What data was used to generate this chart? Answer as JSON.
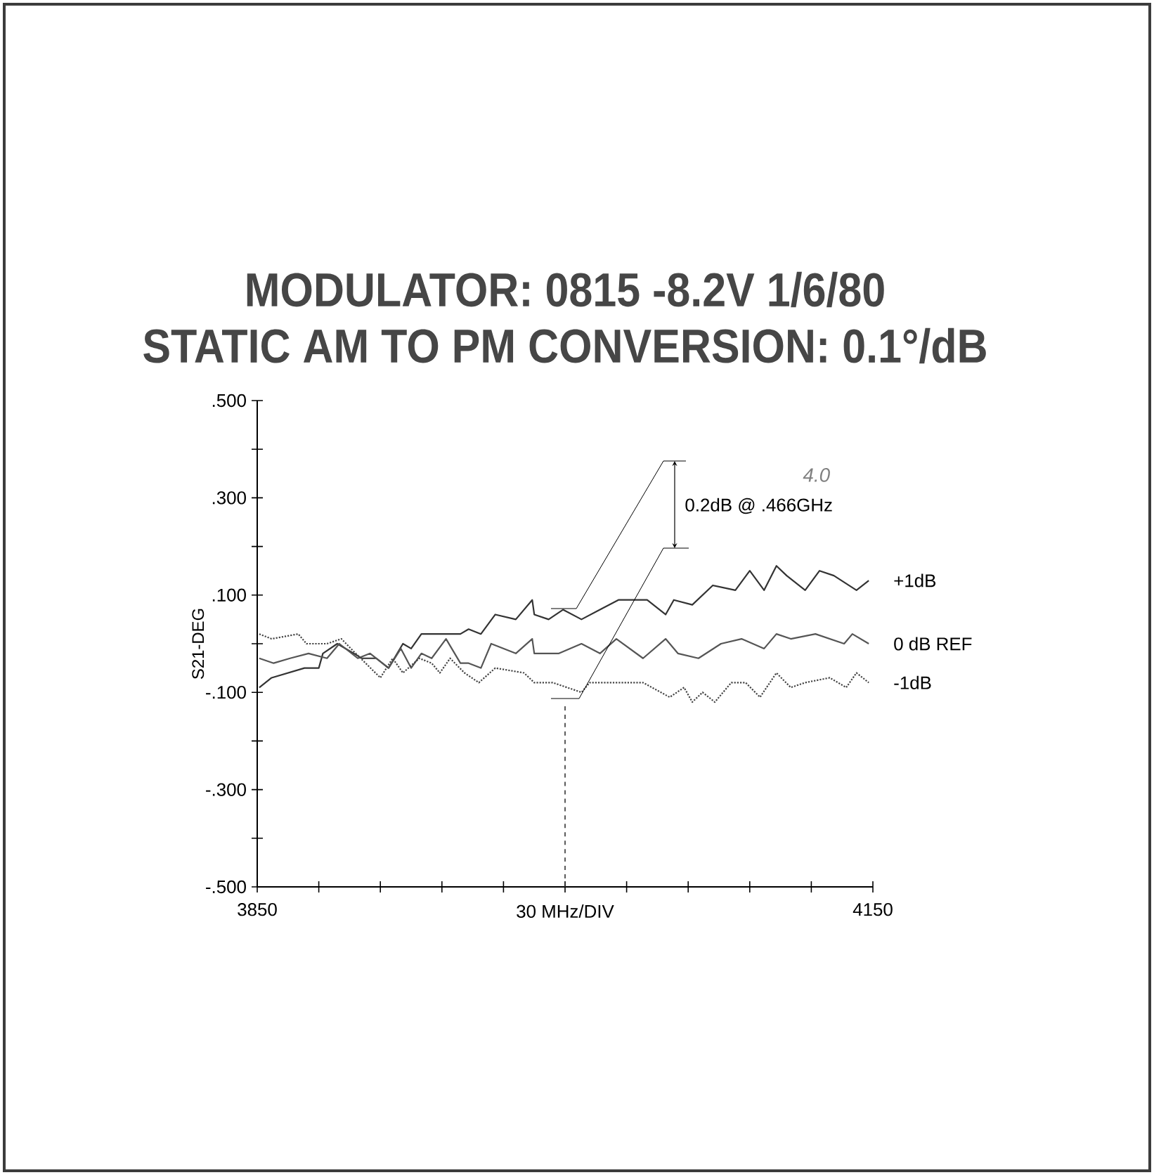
{
  "chart_data": {
    "type": "line",
    "title": "MODULATOR: 0815  -8.2V  1/6/80",
    "subtitle": "STATIC AM TO PM CONVERSION: 0.1°/dB",
    "ylabel": "S21-DEG",
    "xlabel": "30 MHz/DIV",
    "xlim": [
      3850,
      4150
    ],
    "ylim": [
      -0.5,
      0.5
    ],
    "xticks": [
      3850,
      {
        "value": 3880,
        "label": null
      },
      {
        "value": 3910,
        "label": null
      },
      {
        "value": 3940,
        "label": null
      },
      {
        "value": 3970,
        "label": null
      },
      {
        "value": 4000,
        "label": null
      },
      {
        "value": 4030,
        "label": null
      },
      {
        "value": 4060,
        "label": null
      },
      {
        "value": 4090,
        "label": null
      },
      {
        "value": 4120,
        "label": null
      },
      4150
    ],
    "yticks": [
      {
        "value": -0.5,
        "label": "-.500"
      },
      {
        "value": -0.4,
        "label": null
      },
      {
        "value": -0.3,
        "label": "-.300"
      },
      {
        "value": -0.2,
        "label": null
      },
      {
        "value": -0.1,
        "label": "-.100"
      },
      {
        "value": 0,
        "label": null
      },
      {
        "value": 0.1,
        "label": ".100"
      },
      {
        "value": 0.2,
        "label": null
      },
      {
        "value": 0.3,
        "label": ".300"
      },
      {
        "value": 0.4,
        "label": null
      },
      {
        "value": 0.5,
        "label": ".500"
      }
    ],
    "series": [
      {
        "name": "+1dB",
        "color": "#333333",
        "line_style": "solid",
        "x": [
          3851,
          3857,
          3873,
          3880,
          3882,
          3889,
          3901,
          3908,
          3914,
          3921,
          3925,
          3930,
          3949,
          3953,
          3959,
          3966,
          3976,
          3984,
          3985,
          3992,
          3999,
          4008,
          4017,
          4026,
          4033,
          4040,
          4049,
          4053,
          4062,
          4072,
          4083,
          4090,
          4097,
          4103,
          4108,
          4117,
          4124,
          4131,
          4142,
          4148
        ],
        "values": [
          -0.09,
          -0.07,
          -0.05,
          -0.05,
          -0.02,
          0.0,
          -0.03,
          -0.03,
          -0.05,
          0.0,
          -0.01,
          0.02,
          0.02,
          0.03,
          0.02,
          0.06,
          0.05,
          0.09,
          0.06,
          0.05,
          0.07,
          0.05,
          0.07,
          0.09,
          0.09,
          0.09,
          0.06,
          0.09,
          0.08,
          0.12,
          0.11,
          0.15,
          0.11,
          0.16,
          0.14,
          0.11,
          0.15,
          0.14,
          0.11,
          0.13
        ]
      },
      {
        "name": "0 dB REF",
        "color": "#555555",
        "line_style": "solid",
        "x": [
          3851,
          3858,
          3866,
          3875,
          3884,
          3890,
          3899,
          3905,
          3914,
          3920,
          3925,
          3930,
          3935,
          3942,
          3949,
          3953,
          3959,
          3964,
          3976,
          3984,
          3985,
          3997,
          4008,
          4017,
          4025,
          4038,
          4049,
          4055,
          4065,
          4076,
          4086,
          4097,
          4103,
          4110,
          4122,
          4136,
          4140,
          4148
        ],
        "values": [
          -0.03,
          -0.04,
          -0.03,
          -0.02,
          -0.03,
          0.0,
          -0.03,
          -0.02,
          -0.05,
          -0.01,
          -0.05,
          -0.02,
          -0.03,
          0.01,
          -0.04,
          -0.04,
          -0.05,
          0.0,
          -0.02,
          0.01,
          -0.02,
          -0.02,
          0.0,
          -0.02,
          0.01,
          -0.03,
          0.01,
          -0.02,
          -0.03,
          0.0,
          0.01,
          -0.01,
          0.02,
          0.01,
          0.02,
          0.0,
          0.02,
          0.0
        ]
      },
      {
        "name": "-1dB",
        "color": "#444444",
        "line_style": "dotted",
        "x": [
          3851,
          3857,
          3870,
          3874,
          3884,
          3891,
          3898,
          3910,
          3916,
          3921,
          3929,
          3935,
          3939,
          3944,
          3951,
          3958,
          3966,
          3980,
          3985,
          3994,
          4008,
          4012,
          4026,
          4038,
          4051,
          4058,
          4062,
          4067,
          4073,
          4081,
          4088,
          4095,
          4103,
          4110,
          4117,
          4129,
          4137,
          4142,
          4148
        ],
        "values": [
          0.02,
          0.01,
          0.02,
          0.0,
          0.0,
          0.01,
          -0.02,
          -0.07,
          -0.03,
          -0.06,
          -0.03,
          -0.04,
          -0.06,
          -0.03,
          -0.06,
          -0.08,
          -0.05,
          -0.06,
          -0.08,
          -0.08,
          -0.1,
          -0.08,
          -0.08,
          -0.08,
          -0.11,
          -0.09,
          -0.12,
          -0.1,
          -0.12,
          -0.08,
          -0.08,
          -0.11,
          -0.06,
          -0.09,
          -0.08,
          -0.07,
          -0.09,
          -0.06,
          -0.08
        ]
      }
    ],
    "annotations": [
      "0.2dB @ .466GHz",
      "4.0"
    ],
    "ref_lines": [
      {
        "axis": "x",
        "value": 4000,
        "line_style": "dashed",
        "color": "#333333"
      }
    ]
  }
}
